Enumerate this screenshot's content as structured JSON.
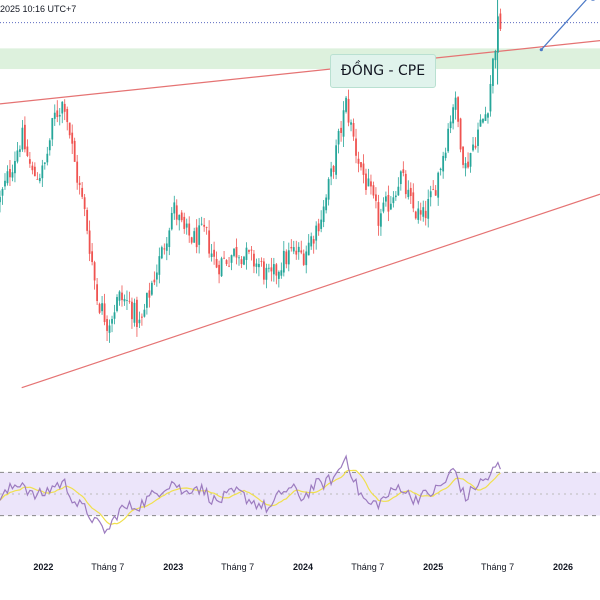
{
  "header": {
    "timestamp": "2025 10:16 UTC+7"
  },
  "title": "ĐỒNG - CPE",
  "colors": {
    "up": "#26a69a",
    "down": "#ef5350",
    "trendline": "#e57373",
    "rsi_line": "#9c7bbf",
    "rsi_ma": "#f0e04c",
    "rsi_band": "#ece5fa",
    "zone": "#d9f0d9",
    "arrow": "#4a78c6",
    "price_dotted": "#5c6bc0"
  },
  "x_axis": {
    "labels": [
      {
        "text": "2022",
        "date": "2022-01-01",
        "strong": true
      },
      {
        "text": "Tháng 7",
        "date": "2022-07-01",
        "strong": false
      },
      {
        "text": "2023",
        "date": "2023-01-01",
        "strong": true
      },
      {
        "text": "Tháng 7",
        "date": "2023-07-01",
        "strong": false
      },
      {
        "text": "2024",
        "date": "2024-01-01",
        "strong": true
      },
      {
        "text": "Tháng 7",
        "date": "2024-07-01",
        "strong": false
      },
      {
        "text": "2025",
        "date": "2025-01-01",
        "strong": true
      },
      {
        "text": "Tháng 7",
        "date": "2025-07-01",
        "strong": false
      },
      {
        "text": "2026",
        "date": "2026-01-01",
        "strong": true
      }
    ]
  },
  "chart_data": {
    "type": "candlestick",
    "title": "ĐỒNG - CPE",
    "x_range": [
      "2021-09-01",
      "2026-04-15"
    ],
    "y_range": [
      2.5,
      5.6
    ],
    "price_series": [
      {
        "date": "2021-09-01",
        "close": 4.2
      },
      {
        "date": "2021-10-01",
        "close": 4.45
      },
      {
        "date": "2021-11-01",
        "close": 4.7
      },
      {
        "date": "2021-12-01",
        "close": 4.4
      },
      {
        "date": "2022-01-01",
        "close": 4.42
      },
      {
        "date": "2022-02-01",
        "close": 4.85
      },
      {
        "date": "2022-03-01",
        "close": 4.98
      },
      {
        "date": "2022-04-01",
        "close": 4.45
      },
      {
        "date": "2022-05-01",
        "close": 4.05
      },
      {
        "date": "2022-06-01",
        "close": 3.45
      },
      {
        "date": "2022-07-01",
        "close": 3.25
      },
      {
        "date": "2022-08-01",
        "close": 3.45
      },
      {
        "date": "2022-09-01",
        "close": 3.4
      },
      {
        "date": "2022-10-01",
        "close": 3.22
      },
      {
        "date": "2022-11-01",
        "close": 3.55
      },
      {
        "date": "2022-12-01",
        "close": 3.8
      },
      {
        "date": "2023-01-01",
        "close": 4.15
      },
      {
        "date": "2023-02-01",
        "close": 3.95
      },
      {
        "date": "2023-03-01",
        "close": 3.9
      },
      {
        "date": "2023-04-01",
        "close": 3.95
      },
      {
        "date": "2023-05-01",
        "close": 3.7
      },
      {
        "date": "2023-06-01",
        "close": 3.75
      },
      {
        "date": "2023-07-01",
        "close": 3.82
      },
      {
        "date": "2023-08-01",
        "close": 3.75
      },
      {
        "date": "2023-09-01",
        "close": 3.7
      },
      {
        "date": "2023-10-01",
        "close": 3.58
      },
      {
        "date": "2023-11-01",
        "close": 3.72
      },
      {
        "date": "2023-12-01",
        "close": 3.8
      },
      {
        "date": "2024-01-01",
        "close": 3.78
      },
      {
        "date": "2024-02-01",
        "close": 3.95
      },
      {
        "date": "2024-03-01",
        "close": 4.15
      },
      {
        "date": "2024-04-01",
        "close": 4.55
      },
      {
        "date": "2024-05-01",
        "close": 4.95
      },
      {
        "date": "2024-06-01",
        "close": 4.55
      },
      {
        "date": "2024-07-01",
        "close": 4.3
      },
      {
        "date": "2024-08-01",
        "close": 4.05
      },
      {
        "date": "2024-09-01",
        "close": 4.2
      },
      {
        "date": "2024-10-01",
        "close": 4.4
      },
      {
        "date": "2024-11-01",
        "close": 4.15
      },
      {
        "date": "2024-12-01",
        "close": 4.05
      },
      {
        "date": "2025-01-01",
        "close": 4.25
      },
      {
        "date": "2025-02-01",
        "close": 4.6
      },
      {
        "date": "2025-03-01",
        "close": 5.0
      },
      {
        "date": "2025-04-01",
        "close": 4.45
      },
      {
        "date": "2025-05-01",
        "close": 4.7
      },
      {
        "date": "2025-06-01",
        "close": 4.9
      },
      {
        "date": "2025-07-01",
        "close": 5.55
      },
      {
        "date": "2025-07-15",
        "close": 5.58
      }
    ],
    "annotations": {
      "current_price": 5.58,
      "spike_high": 5.85,
      "resistance_zone": [
        5.22,
        5.38
      ],
      "upper_trendline": [
        {
          "date": "2021-09-01",
          "price": 4.95
        },
        {
          "date": "2026-04-15",
          "price": 5.44
        }
      ],
      "lower_trendline": [
        {
          "date": "2021-11-01",
          "price": 2.75
        },
        {
          "date": "2026-04-15",
          "price": 4.25
        }
      ],
      "forecast_arrow": [
        {
          "date": "2025-11-01",
          "price": 5.37
        },
        {
          "date": "2026-03-15",
          "price": 5.78
        }
      ]
    },
    "rsi": {
      "range": [
        0,
        100
      ],
      "band": [
        30,
        70
      ],
      "values": [
        {
          "date": "2021-09-01",
          "value": 45
        },
        {
          "date": "2021-10-01",
          "value": 55
        },
        {
          "date": "2021-11-01",
          "value": 62
        },
        {
          "date": "2021-12-01",
          "value": 48
        },
        {
          "date": "2022-01-01",
          "value": 50
        },
        {
          "date": "2022-02-01",
          "value": 58
        },
        {
          "date": "2022-03-01",
          "value": 60
        },
        {
          "date": "2022-04-01",
          "value": 42
        },
        {
          "date": "2022-05-01",
          "value": 35
        },
        {
          "date": "2022-06-01",
          "value": 22
        },
        {
          "date": "2022-07-01",
          "value": 15
        },
        {
          "date": "2022-08-01",
          "value": 35
        },
        {
          "date": "2022-09-01",
          "value": 38
        },
        {
          "date": "2022-10-01",
          "value": 40
        },
        {
          "date": "2022-11-01",
          "value": 48
        },
        {
          "date": "2022-12-01",
          "value": 55
        },
        {
          "date": "2023-01-01",
          "value": 62
        },
        {
          "date": "2023-02-01",
          "value": 50
        },
        {
          "date": "2023-03-01",
          "value": 58
        },
        {
          "date": "2023-04-01",
          "value": 52
        },
        {
          "date": "2023-05-01",
          "value": 42
        },
        {
          "date": "2023-06-01",
          "value": 48
        },
        {
          "date": "2023-07-01",
          "value": 52
        },
        {
          "date": "2023-08-01",
          "value": 45
        },
        {
          "date": "2023-09-01",
          "value": 40
        },
        {
          "date": "2023-10-01",
          "value": 36
        },
        {
          "date": "2023-11-01",
          "value": 52
        },
        {
          "date": "2023-12-01",
          "value": 55
        },
        {
          "date": "2024-01-01",
          "value": 46
        },
        {
          "date": "2024-02-01",
          "value": 58
        },
        {
          "date": "2024-03-01",
          "value": 60
        },
        {
          "date": "2024-04-01",
          "value": 66
        },
        {
          "date": "2024-05-01",
          "value": 85
        },
        {
          "date": "2024-06-01",
          "value": 55
        },
        {
          "date": "2024-07-01",
          "value": 40
        },
        {
          "date": "2024-08-01",
          "value": 42
        },
        {
          "date": "2024-09-01",
          "value": 50
        },
        {
          "date": "2024-10-01",
          "value": 58
        },
        {
          "date": "2024-11-01",
          "value": 46
        },
        {
          "date": "2024-12-01",
          "value": 48
        },
        {
          "date": "2025-01-01",
          "value": 52
        },
        {
          "date": "2025-02-01",
          "value": 60
        },
        {
          "date": "2025-03-01",
          "value": 74
        },
        {
          "date": "2025-04-01",
          "value": 45
        },
        {
          "date": "2025-05-01",
          "value": 58
        },
        {
          "date": "2025-06-01",
          "value": 64
        },
        {
          "date": "2025-07-01",
          "value": 76
        },
        {
          "date": "2025-07-15",
          "value": 72
        }
      ]
    }
  }
}
